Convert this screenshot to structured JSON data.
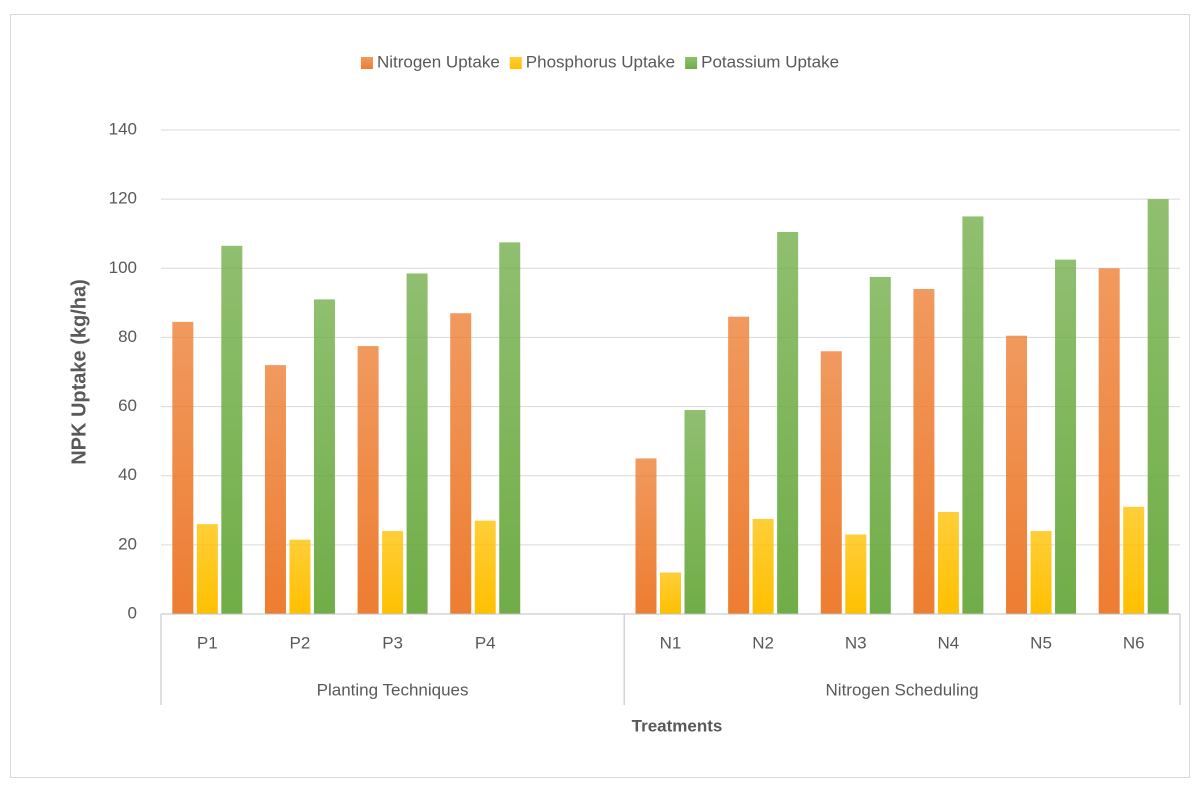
{
  "chart_data": {
    "type": "bar",
    "x_label": "Treatments",
    "y_label": "NPK Uptake (kg/ha)",
    "categories": [
      "P1",
      "P2",
      "P3",
      "P4",
      null,
      "N1",
      "N2",
      "N3",
      "N4",
      "N5",
      "N6"
    ],
    "groups": [
      {
        "label": "Planting Techniques",
        "count": 5
      },
      {
        "label": "Nitrogen Scheduling",
        "count": 6
      }
    ],
    "series": [
      {
        "name": "Nitrogen Uptake",
        "color": "#ed7d31",
        "values": [
          84.5,
          72,
          77.5,
          87,
          null,
          45,
          86,
          76,
          94,
          80.5,
          100
        ]
      },
      {
        "name": "Phosphorus Uptake",
        "color": "#ffc000",
        "values": [
          26,
          21.5,
          24,
          27,
          null,
          12,
          27.5,
          23,
          29.5,
          24,
          31
        ]
      },
      {
        "name": "Potassium Uptake",
        "color": "#70ad47",
        "values": [
          106.5,
          91,
          98.5,
          107.5,
          null,
          59,
          110.5,
          97.5,
          115,
          102.5,
          120
        ]
      }
    ],
    "ylim": [
      0,
      140
    ],
    "yticks": [
      0,
      20,
      40,
      60,
      80,
      100,
      120,
      140
    ],
    "grid": true,
    "legend": "top"
  }
}
